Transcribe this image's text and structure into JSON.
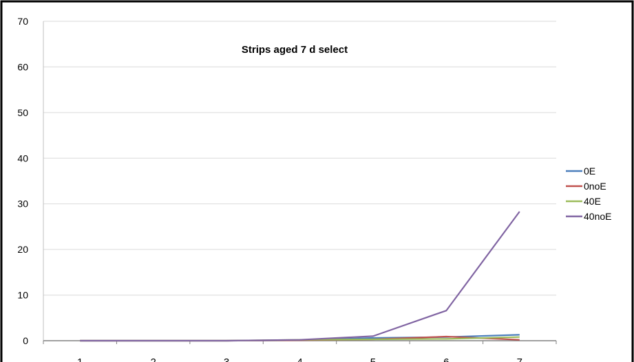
{
  "chart_data": {
    "type": "line",
    "title": "Strips aged 7 d select",
    "xlabel": "",
    "ylabel": "",
    "categories": [
      "1",
      "2",
      "3",
      "4",
      "5",
      "6",
      "7"
    ],
    "ylim": [
      0,
      70
    ],
    "yticks": [
      0,
      10,
      20,
      30,
      40,
      50,
      60,
      70
    ],
    "grid": true,
    "legend_position": "right",
    "series": [
      {
        "name": "0E",
        "color": "#4a7ebb",
        "values": [
          0,
          0,
          0,
          0.1,
          0.6,
          0.8,
          1.3
        ]
      },
      {
        "name": "0noE",
        "color": "#c0504d",
        "values": [
          0,
          0,
          0,
          0.1,
          0.3,
          0.9,
          0.2
        ]
      },
      {
        "name": "40E",
        "color": "#9bbb59",
        "values": [
          0,
          0,
          0,
          0.2,
          0.3,
          0.4,
          0.8
        ]
      },
      {
        "name": "40noE",
        "color": "#8064a2",
        "values": [
          0,
          0,
          0,
          0.2,
          1.0,
          6.6,
          28.3
        ]
      }
    ]
  }
}
